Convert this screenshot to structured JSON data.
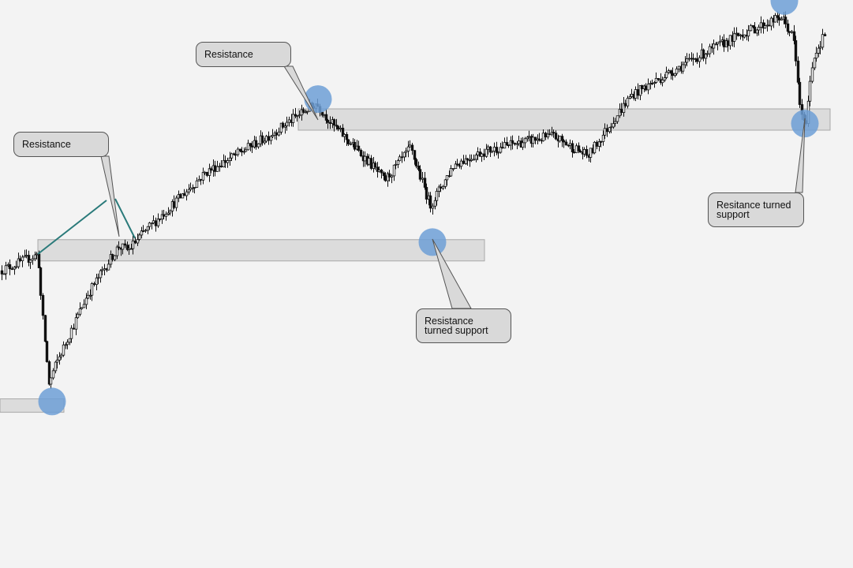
{
  "chart_data": {
    "type": "candlestick",
    "title": "",
    "xlabel": "",
    "ylabel": "",
    "axes_visible": false,
    "grid": false,
    "price_path_anchors": [
      [
        0,
        38
      ],
      [
        48,
        42
      ],
      [
        52,
        30
      ],
      [
        62,
        10
      ],
      [
        68,
        14
      ],
      [
        110,
        32
      ],
      [
        150,
        44
      ],
      [
        162,
        43
      ],
      [
        180,
        47
      ],
      [
        260,
        62
      ],
      [
        340,
        71
      ],
      [
        400,
        79
      ],
      [
        420,
        74
      ],
      [
        470,
        64
      ],
      [
        487,
        60
      ],
      [
        520,
        68
      ],
      [
        545,
        54
      ],
      [
        575,
        64
      ],
      [
        610,
        67
      ],
      [
        650,
        69
      ],
      [
        700,
        71
      ],
      [
        745,
        66
      ],
      [
        770,
        73
      ],
      [
        800,
        81
      ],
      [
        880,
        90
      ],
      [
        940,
        96
      ],
      [
        990,
        100
      ],
      [
        1005,
        95
      ],
      [
        1015,
        76
      ],
      [
        1020,
        73
      ],
      [
        1030,
        90
      ],
      [
        1045,
        96
      ]
    ],
    "horizontal_zones": [
      {
        "id": "zone-low",
        "level": 5
      },
      {
        "id": "zone-1",
        "level": 43
      },
      {
        "id": "zone-2",
        "level": 75
      }
    ],
    "circle_markers": [
      {
        "id": "low",
        "x": 66,
        "y": 6
      },
      {
        "id": "peak-2",
        "x": 403,
        "y": 80
      },
      {
        "id": "pullback-2",
        "x": 548,
        "y": 45
      },
      {
        "id": "top",
        "x": 994,
        "y": 104
      },
      {
        "id": "pullback-3",
        "x": 1020,
        "y": 74
      }
    ]
  },
  "annotations": [
    {
      "id": "resistance-1",
      "text": "Resistance"
    },
    {
      "id": "resistance-2",
      "text": "Resistance"
    },
    {
      "id": "turned-support-1",
      "text": "Resistance\nturned support"
    },
    {
      "id": "turned-support-2",
      "text": "Resitance turned\nsupport"
    }
  ],
  "colors": {
    "background": "#f3f3f3",
    "zone_fill": "#dcdcdc",
    "marker": "#6d9fd6",
    "trendline": "#2a7a7a",
    "candles": "#111111",
    "callout_fill": "#d9d9d9"
  }
}
